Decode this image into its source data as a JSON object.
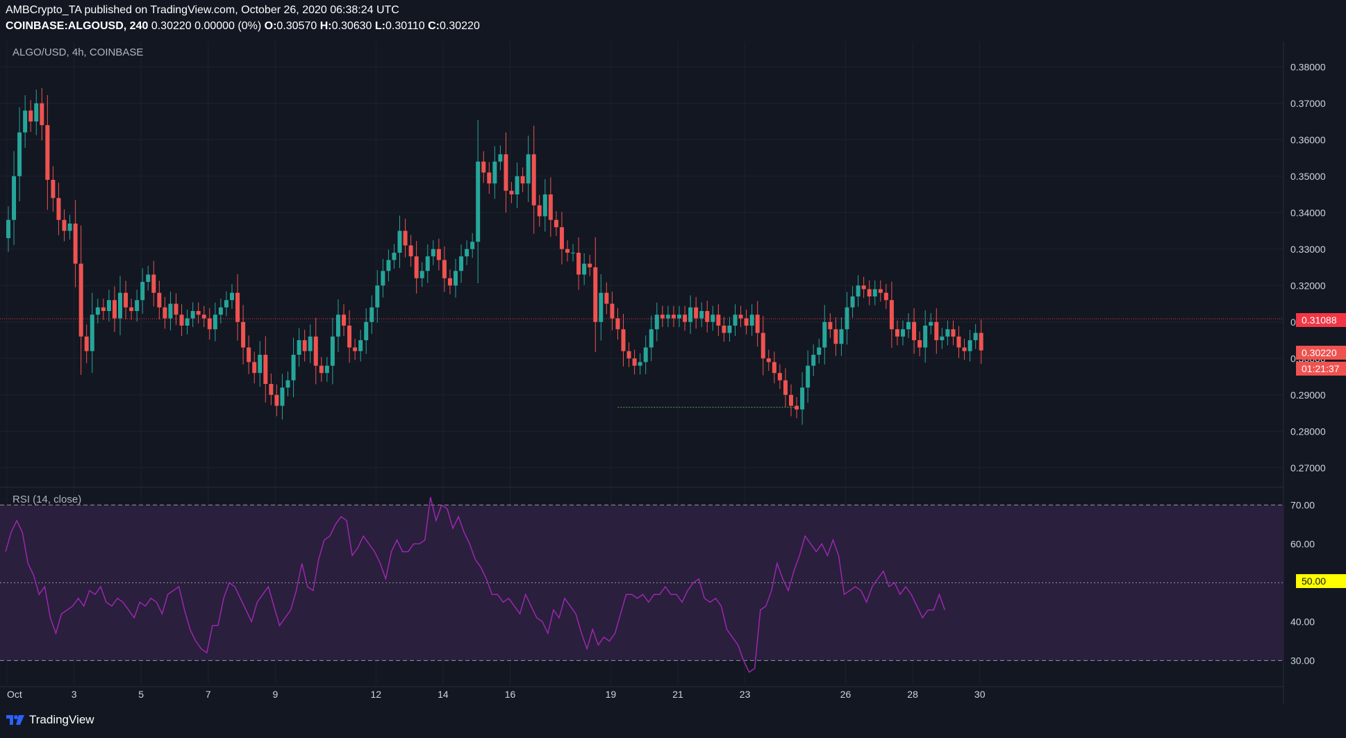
{
  "header": {
    "line1": "AMBCrypto_TA published on TradingView.com, October 26, 2020 06:38:24 UTC",
    "symbol": "COINBASE:ALGOUSD, 240",
    "change": "0.30220 0.00000 (0%)",
    "o_label": "O:",
    "o": "0.30570",
    "h_label": "H:",
    "h": "0.30630",
    "l_label": "L:",
    "l": "0.30110",
    "c_label": "C:",
    "c": "0.30220"
  },
  "pane_symbol": "ALGO/USD, 4h, COINBASE",
  "rsi_label": "RSI (14, close)",
  "logo_text": "TradingView",
  "tags": {
    "last_price": "0.31088",
    "current_price": "0.30220",
    "countdown": "01:21:37",
    "rsi_mid": "50.00"
  },
  "colors": {
    "background": "#131722",
    "up": "#26a69a",
    "down": "#ef5350",
    "rsi_line": "#9c27b0",
    "rsi_band": "#2a1f3d",
    "price_line": "#f23645",
    "support": "#4caf50",
    "mid_tag": "#ffff00"
  },
  "chart_data": [
    {
      "type": "candlestick",
      "title": "ALGO/USD, 4h, COINBASE",
      "ylim": [
        0.265,
        0.385
      ],
      "y_ticks": [
        0.27,
        0.28,
        0.29,
        0.3,
        0.31,
        0.32,
        0.33,
        0.34,
        0.35,
        0.36,
        0.37,
        0.38
      ],
      "y_tick_labels": [
        "0.27000",
        "0.28000",
        "0.29000",
        "0.30000",
        "0.31000",
        "0.32000",
        "0.33000",
        "0.34000",
        "0.35000",
        "0.36000",
        "0.37000",
        "0.38000"
      ],
      "x_ticks": [
        "Oct",
        "3",
        "5",
        "7",
        "9",
        "12",
        "14",
        "16",
        "19",
        "21",
        "23",
        "26",
        "28",
        "30"
      ],
      "horizontal_line": 0.31088,
      "support_line": 0.2866,
      "closes": [
        0.338,
        0.35,
        0.362,
        0.368,
        0.365,
        0.37,
        0.364,
        0.349,
        0.344,
        0.338,
        0.335,
        0.337,
        0.326,
        0.306,
        0.302,
        0.312,
        0.314,
        0.313,
        0.316,
        0.311,
        0.318,
        0.314,
        0.313,
        0.316,
        0.321,
        0.323,
        0.318,
        0.314,
        0.311,
        0.315,
        0.312,
        0.309,
        0.311,
        0.313,
        0.312,
        0.311,
        0.308,
        0.312,
        0.314,
        0.316,
        0.318,
        0.31,
        0.303,
        0.299,
        0.296,
        0.301,
        0.293,
        0.29,
        0.287,
        0.292,
        0.294,
        0.301,
        0.305,
        0.302,
        0.306,
        0.298,
        0.296,
        0.298,
        0.306,
        0.312,
        0.309,
        0.303,
        0.302,
        0.305,
        0.31,
        0.314,
        0.32,
        0.324,
        0.327,
        0.329,
        0.335,
        0.331,
        0.328,
        0.322,
        0.324,
        0.328,
        0.33,
        0.327,
        0.322,
        0.32,
        0.324,
        0.328,
        0.33,
        0.332,
        0.354,
        0.351,
        0.348,
        0.354,
        0.356,
        0.346,
        0.345,
        0.35,
        0.348,
        0.356,
        0.342,
        0.339,
        0.345,
        0.338,
        0.336,
        0.33,
        0.329,
        0.329,
        0.323,
        0.326,
        0.325,
        0.31,
        0.318,
        0.315,
        0.311,
        0.308,
        0.302,
        0.3,
        0.298,
        0.299,
        0.303,
        0.308,
        0.312,
        0.311,
        0.312,
        0.311,
        0.312,
        0.31,
        0.314,
        0.311,
        0.313,
        0.31,
        0.312,
        0.309,
        0.307,
        0.309,
        0.312,
        0.311,
        0.309,
        0.312,
        0.307,
        0.3,
        0.299,
        0.296,
        0.294,
        0.29,
        0.287,
        0.286,
        0.292,
        0.298,
        0.301,
        0.303,
        0.31,
        0.308,
        0.304,
        0.308,
        0.314,
        0.317,
        0.32,
        0.319,
        0.317,
        0.319,
        0.318,
        0.316,
        0.308,
        0.306,
        0.308,
        0.31,
        0.305,
        0.303,
        0.309,
        0.31,
        0.305,
        0.306,
        0.308,
        0.306,
        0.303,
        0.302,
        0.305,
        0.307,
        0.3022
      ],
      "x_labels_positions_note": ""
    },
    {
      "type": "line",
      "title": "RSI (14, close)",
      "ylim": [
        24,
        74
      ],
      "y_ticks": [
        30,
        40,
        50,
        60,
        70
      ],
      "y_tick_labels": [
        "30.00",
        "40.00",
        "50.00",
        "60.00",
        "70.00"
      ],
      "band": [
        30,
        70
      ],
      "midline": 50,
      "values": [
        58,
        63,
        66,
        63,
        55,
        52,
        47,
        49,
        41,
        37,
        42,
        43,
        44,
        46,
        44,
        48,
        47,
        49,
        45,
        44,
        46,
        45,
        43,
        41,
        45,
        44,
        46,
        45,
        42,
        47,
        48,
        49,
        43,
        38,
        35,
        33,
        32,
        39,
        39,
        46,
        50,
        49,
        46,
        43,
        40,
        45,
        47,
        49,
        44,
        39,
        41,
        43,
        48,
        55,
        49,
        48,
        56,
        61,
        62,
        65,
        67,
        66,
        57,
        59,
        62,
        60,
        58,
        55,
        51,
        58,
        61,
        58,
        58,
        60,
        60,
        61,
        72,
        66,
        70,
        69,
        64,
        67,
        63,
        60,
        56,
        54,
        51,
        47,
        47,
        45,
        46,
        44,
        42,
        47,
        44,
        41,
        40,
        37,
        43,
        41,
        46,
        44,
        42,
        37,
        33,
        38,
        34,
        36,
        35,
        37,
        42,
        47,
        47,
        46,
        47,
        45,
        47,
        47,
        49,
        47,
        47,
        45,
        48,
        50,
        51,
        46,
        45,
        46,
        44,
        38,
        36,
        34,
        30,
        27,
        28,
        43,
        44,
        48,
        55,
        51,
        48,
        53,
        57,
        62,
        60,
        58,
        60,
        57,
        61,
        57,
        47,
        48,
        49,
        48,
        45,
        49,
        51,
        53,
        49,
        50,
        47,
        49,
        47,
        44,
        41,
        43,
        43,
        47,
        43
      ]
    }
  ]
}
